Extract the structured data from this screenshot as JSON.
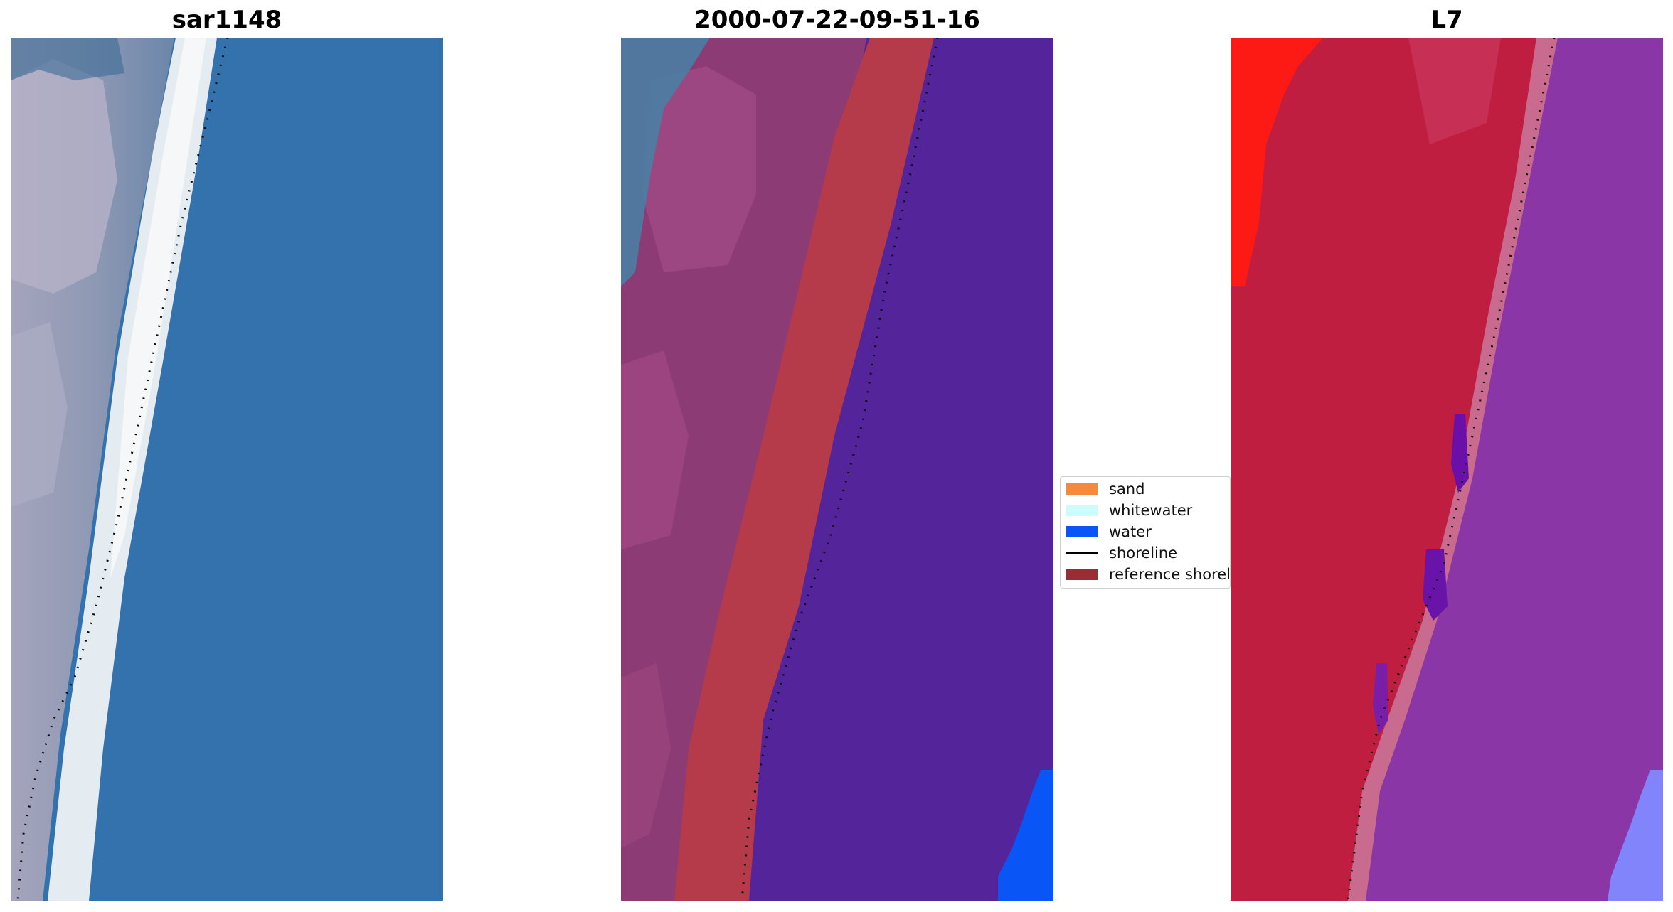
{
  "panels": [
    {
      "title": "sar1148"
    },
    {
      "title": "2000-07-22-09-51-16"
    },
    {
      "title": "L7"
    }
  ],
  "legend": {
    "items": [
      {
        "label": "sand",
        "color": "#f58a3c",
        "kind": "patch"
      },
      {
        "label": "whitewater",
        "color": "#ccfcfc",
        "kind": "patch"
      },
      {
        "label": "water",
        "color": "#0a55f5",
        "kind": "patch"
      },
      {
        "label": "shoreline",
        "color": "#000000",
        "kind": "line"
      },
      {
        "label": "reference shoreli",
        "color": "#9a2c33",
        "kind": "patch"
      }
    ]
  },
  "colors": {
    "rgb_water": "#3472ad",
    "rgb_surf": "#e9eef2",
    "rgb_land": "#8a94ad",
    "class_land": "#8c3b75",
    "class_band": "#b53a4a",
    "class_sea": "#53249a",
    "class_water": "#0a55f5",
    "ndwi_land": "#c01e40",
    "ndwi_sea": "#8a36a6",
    "ndwi_red": "#fe1a14",
    "ndwi_light": "#8184fb"
  }
}
